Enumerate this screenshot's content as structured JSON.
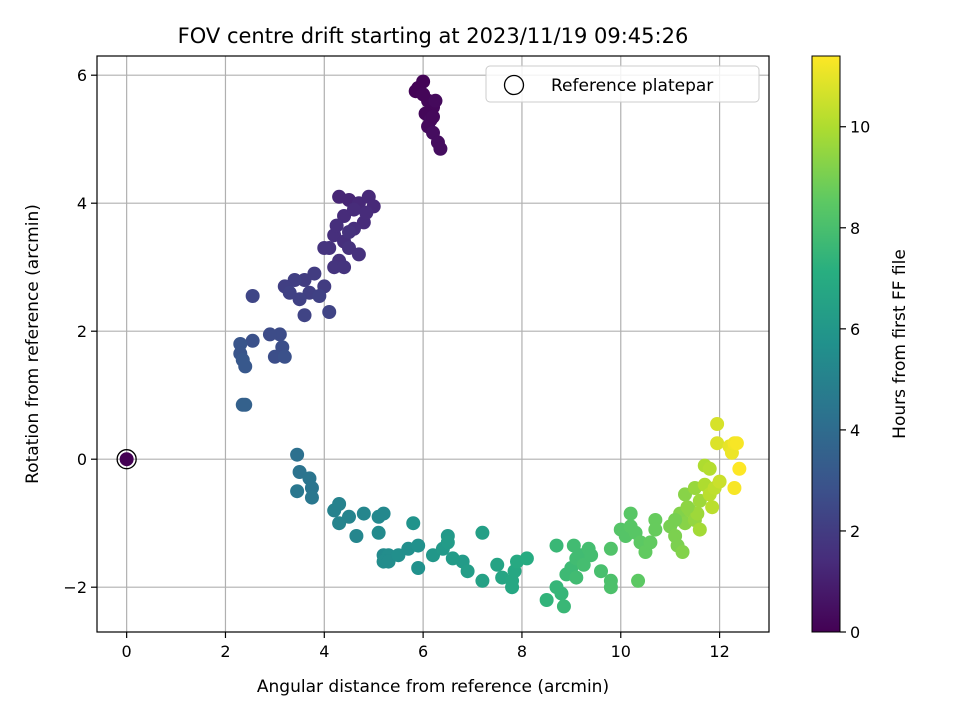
{
  "chart_data": {
    "type": "scatter",
    "title": "FOV centre drift starting at 2023/11/19 09:45:26",
    "xlabel": "Angular distance from reference (arcmin)",
    "ylabel": "Rotation from reference (arcmin)",
    "xlim": [
      -0.6,
      13.0
    ],
    "ylim": [
      -2.7,
      6.3
    ],
    "xticks": [
      0,
      2,
      4,
      6,
      8,
      10,
      12
    ],
    "yticks": [
      -2,
      0,
      2,
      4,
      6
    ],
    "xtick_labels": [
      "0",
      "2",
      "4",
      "6",
      "8",
      "10",
      "12"
    ],
    "ytick_labels": [
      "−2",
      "0",
      "2",
      "4",
      "6"
    ],
    "grid": true,
    "legend": {
      "position": "top-right",
      "entries": [
        "Reference platepar"
      ]
    },
    "reference_point": {
      "x": 0,
      "y": 0
    },
    "colorbar": {
      "label": "Hours from first FF file",
      "colormap": "viridis",
      "range": [
        0,
        11.4
      ],
      "ticks": [
        0,
        2,
        4,
        6,
        8,
        10
      ],
      "tick_labels": [
        "0",
        "2",
        "4",
        "6",
        "8",
        "10"
      ]
    },
    "points": [
      [
        5.9,
        5.8,
        0.1
      ],
      [
        6.0,
        5.9,
        0.1
      ],
      [
        5.85,
        5.75,
        0.1
      ],
      [
        6.1,
        5.6,
        0.2
      ],
      [
        6.2,
        5.5,
        0.2
      ],
      [
        6.05,
        5.4,
        0.2
      ],
      [
        6.25,
        5.6,
        0.3
      ],
      [
        6.15,
        5.3,
        0.3
      ],
      [
        6.1,
        5.2,
        0.3
      ],
      [
        6.2,
        5.1,
        0.4
      ],
      [
        6.3,
        4.95,
        0.4
      ],
      [
        6.35,
        4.85,
        0.4
      ],
      [
        6.0,
        5.7,
        0.15
      ],
      [
        6.2,
        5.35,
        0.25
      ],
      [
        4.3,
        4.1,
        1.2
      ],
      [
        4.5,
        4.05,
        1.2
      ],
      [
        4.7,
        4.0,
        1.3
      ],
      [
        4.9,
        4.1,
        1.3
      ],
      [
        5.0,
        3.95,
        1.3
      ],
      [
        4.4,
        3.8,
        1.4
      ],
      [
        4.6,
        3.9,
        1.4
      ],
      [
        4.8,
        3.7,
        1.4
      ],
      [
        4.2,
        3.5,
        1.5
      ],
      [
        4.4,
        3.4,
        1.5
      ],
      [
        4.6,
        3.6,
        1.5
      ],
      [
        4.85,
        3.85,
        1.4
      ],
      [
        4.1,
        3.3,
        1.6
      ],
      [
        4.3,
        3.1,
        1.6
      ],
      [
        4.5,
        3.3,
        1.6
      ],
      [
        4.7,
        3.2,
        1.6
      ],
      [
        4.2,
        3.0,
        1.7
      ],
      [
        4.4,
        3.0,
        1.7
      ],
      [
        4.0,
        3.3,
        1.7
      ],
      [
        4.5,
        3.55,
        1.6
      ],
      [
        4.25,
        3.65,
        1.5
      ],
      [
        3.6,
        2.8,
        2.0
      ],
      [
        3.8,
        2.9,
        2.0
      ],
      [
        4.0,
        2.7,
        2.0
      ],
      [
        3.4,
        2.8,
        2.1
      ],
      [
        3.2,
        2.7,
        2.1
      ],
      [
        3.7,
        2.6,
        2.1
      ],
      [
        3.9,
        2.55,
        2.2
      ],
      [
        3.5,
        2.5,
        2.2
      ],
      [
        3.3,
        2.6,
        2.2
      ],
      [
        4.1,
        2.3,
        2.3
      ],
      [
        3.6,
        2.25,
        2.3
      ],
      [
        2.55,
        2.55,
        2.4
      ],
      [
        3.1,
        1.95,
        2.6
      ],
      [
        2.9,
        1.95,
        2.6
      ],
      [
        3.15,
        1.75,
        2.7
      ],
      [
        3.0,
        1.6,
        2.7
      ],
      [
        3.2,
        1.6,
        2.8
      ],
      [
        2.55,
        1.85,
        2.8
      ],
      [
        2.3,
        1.8,
        3.0
      ],
      [
        2.3,
        1.65,
        3.0
      ],
      [
        2.35,
        1.55,
        3.1
      ],
      [
        2.4,
        1.45,
        3.1
      ],
      [
        2.35,
        0.85,
        3.5
      ],
      [
        2.4,
        0.85,
        3.5
      ],
      [
        3.45,
        0.07,
        4.2
      ],
      [
        3.5,
        -0.2,
        4.3
      ],
      [
        3.7,
        -0.3,
        4.4
      ],
      [
        3.75,
        -0.45,
        4.4
      ],
      [
        3.45,
        -0.5,
        4.5
      ],
      [
        3.75,
        -0.6,
        4.5
      ],
      [
        4.3,
        -0.7,
        5.0
      ],
      [
        4.2,
        -0.8,
        5.0
      ],
      [
        4.5,
        -0.9,
        5.1
      ],
      [
        4.3,
        -1.0,
        5.1
      ],
      [
        4.8,
        -0.85,
        5.2
      ],
      [
        4.65,
        -1.2,
        5.2
      ],
      [
        5.1,
        -0.9,
        5.3
      ],
      [
        5.2,
        -0.85,
        5.3
      ],
      [
        5.1,
        -1.15,
        5.4
      ],
      [
        5.2,
        -1.5,
        5.4
      ],
      [
        5.3,
        -1.5,
        5.5
      ],
      [
        5.2,
        -1.6,
        5.5
      ],
      [
        5.3,
        -1.6,
        5.5
      ],
      [
        5.5,
        -1.5,
        5.6
      ],
      [
        5.7,
        -1.4,
        5.6
      ],
      [
        5.9,
        -1.35,
        5.7
      ],
      [
        5.9,
        -1.7,
        5.7
      ],
      [
        5.8,
        -1.0,
        5.8
      ],
      [
        6.2,
        -1.5,
        6.0
      ],
      [
        6.4,
        -1.4,
        6.1
      ],
      [
        6.5,
        -1.2,
        6.1
      ],
      [
        6.6,
        -1.55,
        6.2
      ],
      [
        6.8,
        -1.6,
        6.2
      ],
      [
        6.9,
        -1.75,
        6.3
      ],
      [
        6.5,
        -1.3,
        6.2
      ],
      [
        7.2,
        -1.15,
        6.4
      ],
      [
        7.2,
        -1.9,
        6.5
      ],
      [
        7.5,
        -1.65,
        6.6
      ],
      [
        7.6,
        -1.85,
        6.7
      ],
      [
        7.8,
        -1.9,
        6.8
      ],
      [
        7.8,
        -2.0,
        6.8
      ],
      [
        7.85,
        -1.75,
        6.8
      ],
      [
        7.9,
        -1.6,
        6.9
      ],
      [
        8.1,
        -1.55,
        7.0
      ],
      [
        8.5,
        -2.2,
        7.4
      ],
      [
        8.7,
        -2.0,
        7.5
      ],
      [
        8.8,
        -2.1,
        7.5
      ],
      [
        8.85,
        -2.3,
        7.6
      ],
      [
        8.7,
        -1.35,
        7.6
      ],
      [
        8.9,
        -1.8,
        7.7
      ],
      [
        9.0,
        -1.7,
        7.7
      ],
      [
        9.1,
        -1.55,
        7.8
      ],
      [
        9.1,
        -1.85,
        7.8
      ],
      [
        9.2,
        -1.5,
        7.8
      ],
      [
        9.05,
        -1.35,
        7.8
      ],
      [
        9.25,
        -1.65,
        7.9
      ],
      [
        9.35,
        -1.4,
        7.9
      ],
      [
        9.4,
        -1.5,
        7.9
      ],
      [
        9.6,
        -1.75,
        8.0
      ],
      [
        9.8,
        -1.9,
        8.1
      ],
      [
        9.8,
        -2.0,
        8.1
      ],
      [
        9.8,
        -1.4,
        8.2
      ],
      [
        10.0,
        -1.1,
        8.3
      ],
      [
        10.1,
        -1.2,
        8.3
      ],
      [
        10.2,
        -0.85,
        8.4
      ],
      [
        10.2,
        -1.05,
        8.4
      ],
      [
        10.3,
        -1.15,
        8.4
      ],
      [
        10.35,
        -1.9,
        8.5
      ],
      [
        10.4,
        -1.3,
        8.5
      ],
      [
        10.5,
        -1.45,
        8.6
      ],
      [
        10.6,
        -1.3,
        8.6
      ],
      [
        10.7,
        -0.95,
        8.7
      ],
      [
        10.7,
        -1.1,
        8.7
      ],
      [
        11.0,
        -1.05,
        9.0
      ],
      [
        11.1,
        -1.2,
        9.1
      ],
      [
        11.15,
        -1.35,
        9.1
      ],
      [
        11.2,
        -0.85,
        9.2
      ],
      [
        11.25,
        -1.45,
        9.2
      ],
      [
        11.3,
        -0.55,
        9.3
      ],
      [
        11.3,
        -1.0,
        9.3
      ],
      [
        11.4,
        -0.8,
        9.4
      ],
      [
        11.5,
        -0.95,
        9.5
      ],
      [
        11.5,
        -0.45,
        9.6
      ],
      [
        11.6,
        -0.65,
        9.7
      ],
      [
        11.55,
        -0.85,
        9.7
      ],
      [
        11.6,
        -1.1,
        9.8
      ],
      [
        11.7,
        -0.1,
        10.0
      ],
      [
        11.7,
        -0.4,
        10.0
      ],
      [
        11.8,
        -0.15,
        10.1
      ],
      [
        11.8,
        -0.55,
        10.2
      ],
      [
        11.85,
        -0.75,
        10.2
      ],
      [
        11.9,
        -0.45,
        10.3
      ],
      [
        11.95,
        0.55,
        10.7
      ],
      [
        11.95,
        0.25,
        10.8
      ],
      [
        12.0,
        -0.35,
        10.5
      ],
      [
        12.2,
        0.2,
        11.0
      ],
      [
        12.25,
        0.1,
        11.1
      ],
      [
        12.3,
        0.25,
        11.2
      ],
      [
        12.35,
        0.25,
        11.3
      ],
      [
        12.3,
        -0.45,
        11.3
      ],
      [
        12.4,
        -0.15,
        11.4
      ],
      [
        11.35,
        -0.75,
        9.4
      ],
      [
        11.1,
        -0.95,
        9.0
      ]
    ]
  }
}
